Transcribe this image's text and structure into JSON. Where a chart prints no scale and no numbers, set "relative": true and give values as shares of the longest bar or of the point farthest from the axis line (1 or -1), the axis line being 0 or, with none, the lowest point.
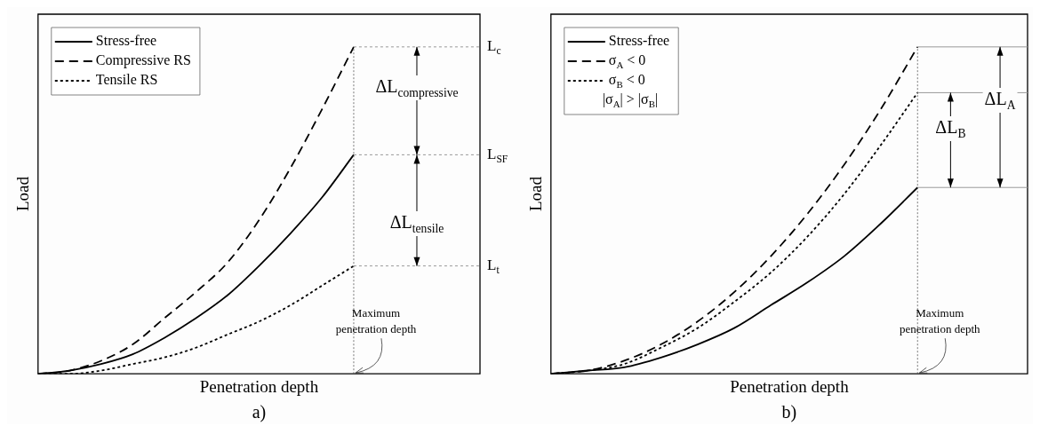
{
  "chart_data": [
    {
      "type": "line",
      "xlabel": "Penetration depth",
      "ylabel": "Load",
      "relative": true,
      "tick_labels": false,
      "legend": "top left",
      "marker": "none",
      "categories": [
        null,
        null,
        null,
        null,
        null,
        null,
        null,
        null,
        null,
        null,
        null,
        null,
        null,
        null,
        null
      ],
      "series": [
        {
          "name": "Stress-free",
          "color": "#000000",
          "line_style": "solid",
          "values": [
            0,
            0.01,
            0.03,
            0.06,
            0.11,
            0.17,
            0.24,
            0.33,
            0.43,
            0.54,
            0.67,
            null,
            null,
            null,
            null
          ]
        },
        {
          "name": "Compressive RS",
          "color": "#000000",
          "line_style": "dashed",
          "values": [
            0,
            0.01,
            0.04,
            0.09,
            0.17,
            0.25,
            0.34,
            0.47,
            0.63,
            0.81,
            1,
            null,
            null,
            null,
            null
          ]
        },
        {
          "name": "Tensile RS",
          "color": "#000000",
          "line_style": "dotted",
          "values": [
            0,
            0,
            0.01,
            0.03,
            0.05,
            0.08,
            0.12,
            0.16,
            0.21,
            0.27,
            0.33,
            null,
            null,
            null,
            null
          ]
        }
      ],
      "ref_lines": [
        {
          "axis": "y",
          "value": 1,
          "label": "L$_{c}$",
          "color": "#999999",
          "line_style": "dotted"
        },
        {
          "axis": "y",
          "value": 0.67,
          "label": "L$_{SF}$",
          "color": "#999999",
          "line_style": "dotted"
        },
        {
          "axis": "y",
          "value": 0.33,
          "label": "L$_{t}$",
          "color": "#999999",
          "line_style": "dotted"
        }
      ],
      "annotations": [
        "Maximum penetration depth",
        "a)",
        {
          "text": "ΔL$_{compressive}$",
          "y": 1
        },
        {
          "text": "ΔL$_{tensile}$",
          "y": 0.33
        }
      ]
    },
    {
      "type": "line",
      "xlabel": "Penetration depth",
      "ylabel": "Load",
      "relative": true,
      "tick_labels": false,
      "legend": "top left",
      "marker": "none",
      "legend_title": "|σ$_{A}$| > |σ$_{B}$|",
      "categories": [
        null,
        null,
        null,
        null,
        null,
        null,
        null,
        null,
        null,
        null,
        null,
        null,
        null,
        null
      ],
      "series": [
        {
          "name": "Stress-free",
          "color": "#000000",
          "line_style": "solid",
          "values": [
            0,
            0.01,
            0.02,
            0.05,
            0.09,
            0.14,
            0.21,
            0.28,
            0.36,
            0.46,
            0.57,
            null,
            null,
            null
          ]
        },
        {
          "name": "σ$_{A}$ < 0",
          "color": "#000000",
          "line_style": "dashed",
          "values": [
            0,
            0.01,
            0.04,
            0.09,
            0.16,
            0.25,
            0.36,
            0.49,
            0.64,
            0.81,
            1,
            null,
            null,
            null
          ]
        },
        {
          "name": "σ$_{B}$ < 0",
          "color": "#000000",
          "line_style": "dotted",
          "values": [
            0,
            0.01,
            0.03,
            0.08,
            0.14,
            0.22,
            0.31,
            0.42,
            0.55,
            0.7,
            0.86,
            null,
            null,
            null
          ]
        }
      ],
      "ref_lines": [
        {
          "axis": "y",
          "value": 1,
          "color": "#999999",
          "line_style": "solid"
        },
        {
          "axis": "y",
          "value": 0.86,
          "color": "#999999",
          "line_style": "solid"
        },
        {
          "axis": "y",
          "value": 0.57,
          "color": "#999999",
          "line_style": "solid"
        }
      ],
      "annotations": [
        "Maximum penetration depth",
        "b)",
        {
          "text": "ΔL$_{B}$",
          "y": 0.86
        },
        {
          "text": "ΔL$_{A}$",
          "y": 1
        }
      ]
    }
  ]
}
